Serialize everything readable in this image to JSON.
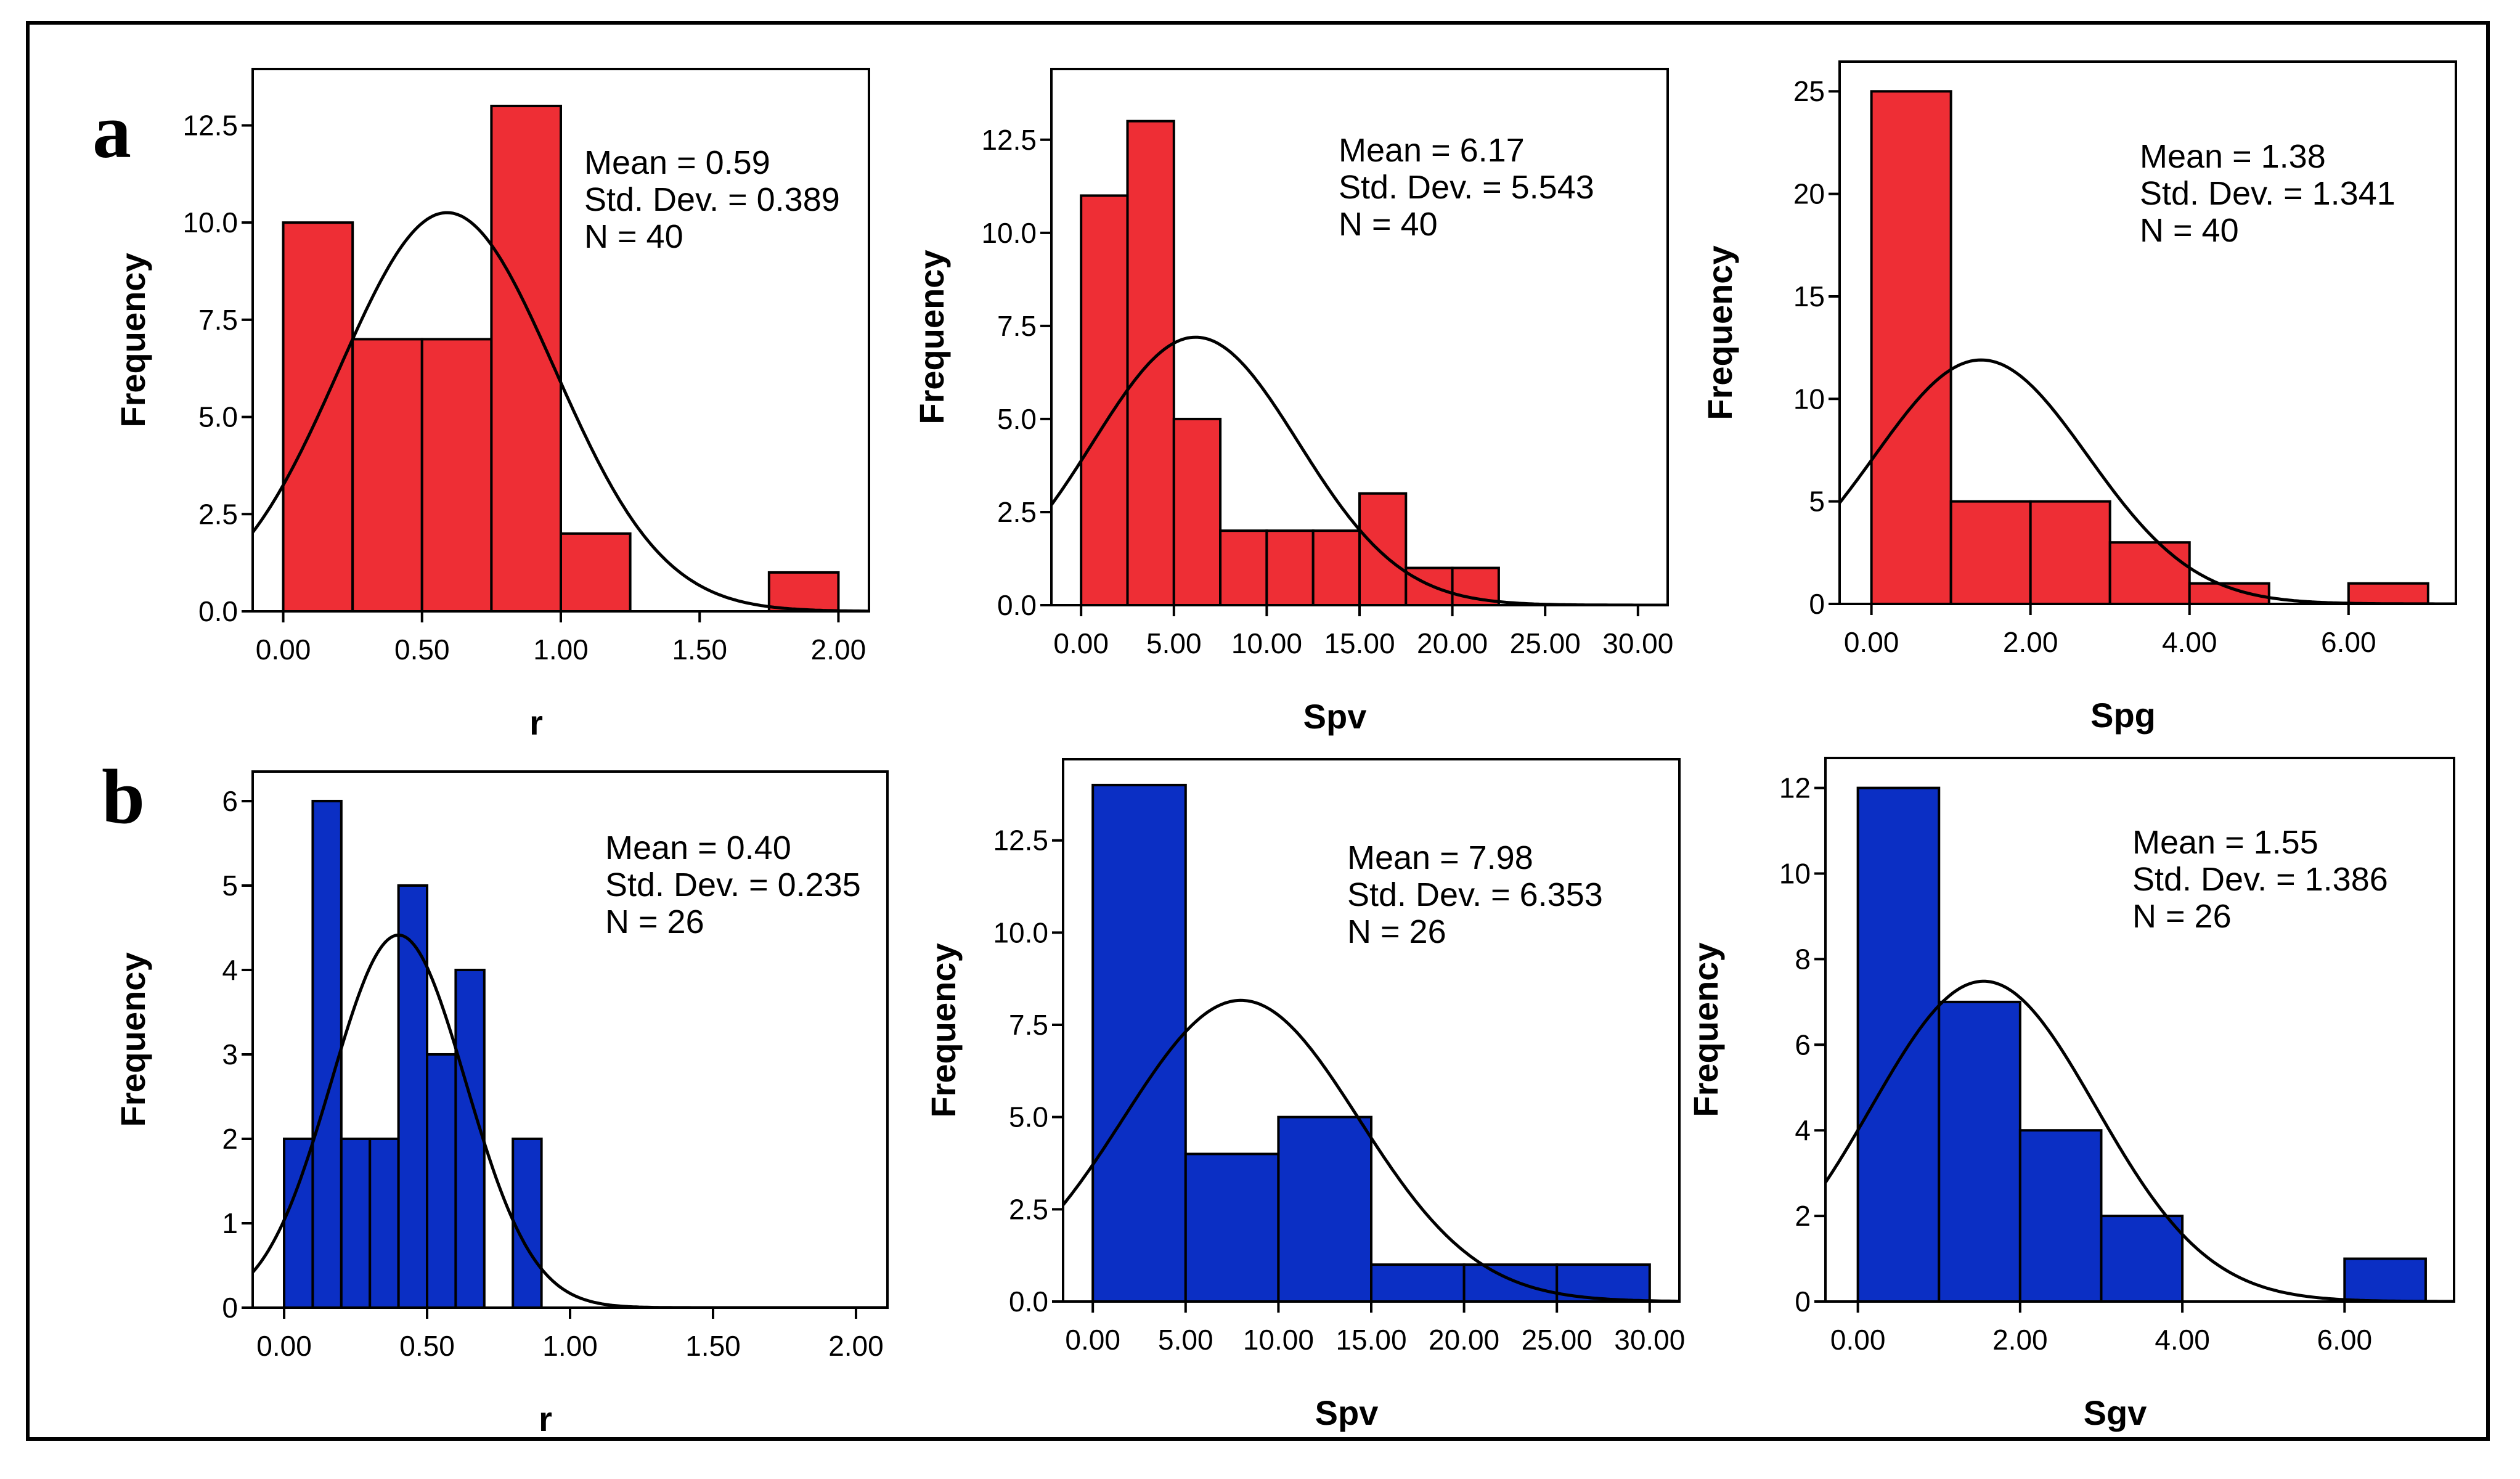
{
  "panel_labels": [
    "a",
    "b"
  ],
  "colors": {
    "red": "#EE2E35",
    "blue": "#0B2FC4",
    "curve": "#000000"
  },
  "chart_data": [
    {
      "type": "bar",
      "row": "a",
      "title": "",
      "xlabel": "r",
      "ylabel": "Frequency",
      "xlim": [
        -0.11,
        2.11
      ],
      "ylim": [
        0,
        13.95
      ],
      "xticks": [
        0,
        0.5,
        1,
        1.5,
        2
      ],
      "xtick_labels": [
        "0.00",
        "0.50",
        "1.00",
        "1.50",
        "2.00"
      ],
      "yticks": [
        0,
        2.5,
        5,
        7.5,
        10,
        12.5
      ],
      "ytick_labels": [
        "0.0",
        "2.5",
        "5.0",
        "7.5",
        "10.0",
        "12.5"
      ],
      "bin_edges": [
        0,
        0.25,
        0.5,
        0.75,
        1.0,
        1.25,
        1.5,
        1.75,
        2.0
      ],
      "values": [
        10,
        7,
        7,
        13,
        2,
        0,
        0,
        1
      ],
      "stats": [
        "Mean = 0.59",
        "Std. Dev. = 0.389",
        "N = 40"
      ],
      "normal": {
        "mean": 0.59,
        "sd": 0.389,
        "n": 40,
        "binwidth": 0.25
      },
      "color": "#EE2E35"
    },
    {
      "type": "bar",
      "row": "a",
      "title": "",
      "xlabel": "Spv",
      "ylabel": "Frequency",
      "xlim": [
        -1.6,
        31.6
      ],
      "ylim": [
        0,
        14.4
      ],
      "xticks": [
        0,
        5,
        10,
        15,
        20,
        25,
        30
      ],
      "xtick_labels": [
        "0.00",
        "5.00",
        "10.00",
        "15.00",
        "20.00",
        "25.00",
        "30.00"
      ],
      "yticks": [
        0,
        2.5,
        5,
        7.5,
        10,
        12.5
      ],
      "ytick_labels": [
        "0.0",
        "2.5",
        "5.0",
        "7.5",
        "10.0",
        "12.5"
      ],
      "bin_edges": [
        0,
        2.5,
        5,
        7.5,
        10,
        12.5,
        15,
        17.5,
        20,
        22.5
      ],
      "values": [
        11,
        13,
        5,
        2,
        2,
        2,
        3,
        1,
        1
      ],
      "stats": [
        "Mean = 6.17",
        "Std. Dev. = 5.543",
        "N = 40"
      ],
      "normal": {
        "mean": 6.17,
        "sd": 5.543,
        "n": 40,
        "binwidth": 2.5
      },
      "color": "#EE2E35"
    },
    {
      "type": "bar",
      "row": "a",
      "title": "",
      "xlabel": "Spg",
      "ylabel": "Frequency",
      "xlim": [
        -0.4,
        7.35
      ],
      "ylim": [
        0,
        26.45
      ],
      "xticks": [
        0,
        2,
        4,
        6
      ],
      "xtick_labels": [
        "0.00",
        "2.00",
        "4.00",
        "6.00"
      ],
      "yticks": [
        0,
        5,
        10,
        15,
        20,
        25
      ],
      "ytick_labels": [
        "0",
        "5",
        "10",
        "15",
        "20",
        "25"
      ],
      "bin_edges": [
        0,
        1,
        2,
        3,
        4,
        5,
        6,
        7
      ],
      "values": [
        25,
        5,
        5,
        3,
        1,
        0,
        1
      ],
      "stats": [
        "Mean = 1.38",
        "Std. Dev. = 1.341",
        "N = 40"
      ],
      "normal": {
        "mean": 1.38,
        "sd": 1.341,
        "n": 40,
        "binwidth": 1
      },
      "color": "#EE2E35"
    },
    {
      "type": "bar",
      "row": "b",
      "title": "",
      "xlabel": "r",
      "ylabel": "Frequency",
      "xlim": [
        -0.11,
        2.11
      ],
      "ylim": [
        0,
        6.35
      ],
      "xticks": [
        0,
        0.5,
        1,
        1.5,
        2
      ],
      "xtick_labels": [
        "0.00",
        "0.50",
        "1.00",
        "1.50",
        "2.00"
      ],
      "yticks": [
        0,
        1,
        2,
        3,
        4,
        5,
        6
      ],
      "ytick_labels": [
        "0",
        "1",
        "2",
        "3",
        "4",
        "5",
        "6"
      ],
      "bin_edges": [
        0,
        0.1,
        0.2,
        0.3,
        0.4,
        0.5,
        0.6,
        0.7,
        0.8,
        0.9
      ],
      "values": [
        2,
        6,
        2,
        2,
        5,
        3,
        4,
        0,
        2
      ],
      "stats": [
        "Mean = 0.40",
        "Std. Dev. = 0.235",
        "N = 26"
      ],
      "normal": {
        "mean": 0.4,
        "sd": 0.235,
        "n": 26,
        "binwidth": 0.1
      },
      "color": "#0B2FC4"
    },
    {
      "type": "bar",
      "row": "b",
      "title": "",
      "xlabel": "Spv",
      "ylabel": "Frequency",
      "xlim": [
        -1.6,
        31.6
      ],
      "ylim": [
        0,
        14.7
      ],
      "xticks": [
        0,
        5,
        10,
        15,
        20,
        25,
        30
      ],
      "xtick_labels": [
        "0.00",
        "5.00",
        "10.00",
        "15.00",
        "20.00",
        "25.00",
        "30.00"
      ],
      "yticks": [
        0,
        2.5,
        5,
        7.5,
        10,
        12.5
      ],
      "ytick_labels": [
        "0.0",
        "2.5",
        "5.0",
        "7.5",
        "10.0",
        "12.5"
      ],
      "bin_edges": [
        0,
        5,
        10,
        15,
        20,
        25,
        30
      ],
      "values": [
        14,
        4,
        5,
        1,
        1,
        1
      ],
      "stats": [
        "Mean = 7.98",
        "Std. Dev. = 6.353",
        "N = 26"
      ],
      "normal": {
        "mean": 7.98,
        "sd": 6.353,
        "n": 26,
        "binwidth": 5
      },
      "color": "#0B2FC4"
    },
    {
      "type": "bar",
      "row": "b",
      "title": "",
      "xlabel": "Sgv",
      "ylabel": "Frequency",
      "xlim": [
        -0.4,
        7.35
      ],
      "ylim": [
        0,
        12.7
      ],
      "xticks": [
        0,
        2,
        4,
        6
      ],
      "xtick_labels": [
        "0.00",
        "2.00",
        "4.00",
        "6.00"
      ],
      "yticks": [
        0,
        2,
        4,
        6,
        8,
        10,
        12
      ],
      "ytick_labels": [
        "0",
        "2",
        "4",
        "6",
        "8",
        "10",
        "12"
      ],
      "bin_edges": [
        0,
        1,
        2,
        3,
        4,
        5,
        6,
        7
      ],
      "values": [
        12,
        7,
        4,
        2,
        0,
        0,
        1
      ],
      "stats": [
        "Mean = 1.55",
        "Std. Dev. = 1.386",
        "N = 26"
      ],
      "normal": {
        "mean": 1.55,
        "sd": 1.386,
        "n": 26,
        "binwidth": 1
      },
      "color": "#0B2FC4"
    }
  ]
}
